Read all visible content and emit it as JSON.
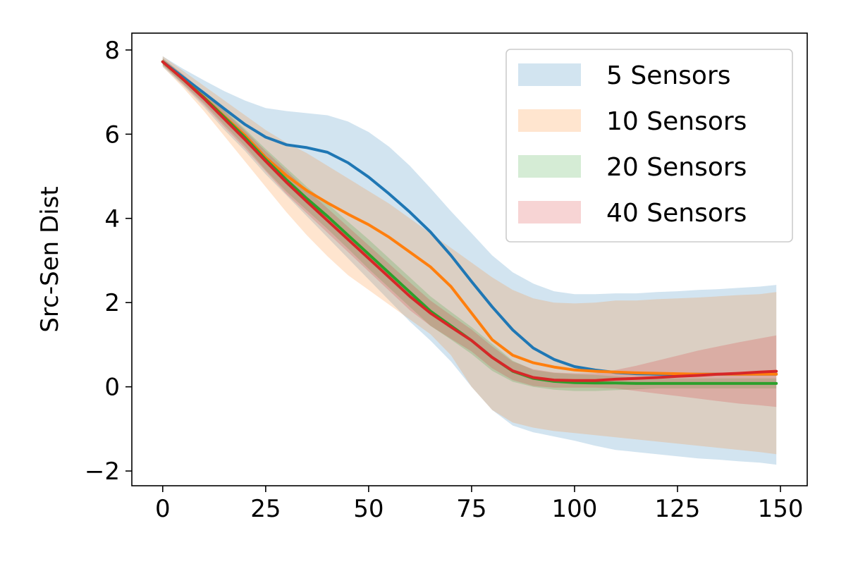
{
  "chart_data": {
    "type": "line",
    "title": "",
    "xlabel": "",
    "ylabel": "Src-Sen Dist",
    "xlim": [
      -7.5,
      156.5
    ],
    "ylim": [
      -2.35,
      8.4
    ],
    "xticks": [
      0,
      25,
      50,
      75,
      100,
      125,
      150
    ],
    "yticks": [
      -2,
      0,
      2,
      4,
      6,
      8
    ],
    "xtick_labels": [
      "0",
      "25",
      "50",
      "75",
      "100",
      "125",
      "150"
    ],
    "ytick_labels": [
      "−2",
      "0",
      "2",
      "4",
      "6",
      "8"
    ],
    "grid": false,
    "legend_position": "upper right",
    "shaded_band": "mean ± spread",
    "band_opacity": 0.2,
    "x": [
      0,
      5,
      10,
      15,
      20,
      25,
      30,
      35,
      40,
      45,
      50,
      55,
      60,
      65,
      70,
      75,
      80,
      85,
      90,
      95,
      100,
      105,
      110,
      115,
      120,
      125,
      130,
      135,
      140,
      145,
      149
    ],
    "series": [
      {
        "name": "5 Sensors",
        "color": "#1f77b4",
        "mean": [
          7.72,
          7.35,
          6.98,
          6.6,
          6.23,
          5.93,
          5.75,
          5.68,
          5.57,
          5.32,
          4.98,
          4.58,
          4.15,
          3.68,
          3.12,
          2.5,
          1.9,
          1.35,
          0.92,
          0.65,
          0.48,
          0.4,
          0.34,
          0.31,
          0.3,
          0.3,
          0.3,
          0.3,
          0.3,
          0.3,
          0.3
        ],
        "upper": [
          7.85,
          7.55,
          7.28,
          7.02,
          6.8,
          6.62,
          6.55,
          6.5,
          6.45,
          6.3,
          6.05,
          5.7,
          5.25,
          4.72,
          4.17,
          3.65,
          3.12,
          2.72,
          2.45,
          2.27,
          2.2,
          2.2,
          2.22,
          2.22,
          2.25,
          2.27,
          2.3,
          2.32,
          2.35,
          2.38,
          2.42
        ],
        "lower": [
          7.6,
          7.15,
          6.65,
          6.1,
          5.6,
          5.05,
          4.55,
          4.05,
          3.55,
          3.05,
          2.55,
          2.05,
          1.55,
          1.1,
          0.6,
          0.0,
          -0.55,
          -0.92,
          -1.08,
          -1.18,
          -1.28,
          -1.4,
          -1.5,
          -1.55,
          -1.6,
          -1.65,
          -1.7,
          -1.73,
          -1.77,
          -1.8,
          -1.85
        ]
      },
      {
        "name": "10 Sensors",
        "color": "#ff7f0e",
        "mean": [
          7.72,
          7.3,
          6.88,
          6.42,
          5.97,
          5.45,
          5.02,
          4.66,
          4.37,
          4.1,
          3.85,
          3.55,
          3.2,
          2.85,
          2.38,
          1.75,
          1.12,
          0.75,
          0.57,
          0.47,
          0.4,
          0.37,
          0.35,
          0.33,
          0.32,
          0.31,
          0.3,
          0.3,
          0.3,
          0.3,
          0.3
        ],
        "upper": [
          7.85,
          7.5,
          7.15,
          6.8,
          6.45,
          6.1,
          5.8,
          5.55,
          5.25,
          4.95,
          4.65,
          4.35,
          4.0,
          3.65,
          3.3,
          2.95,
          2.6,
          2.3,
          2.1,
          2.0,
          1.98,
          2.0,
          2.05,
          2.05,
          2.08,
          2.1,
          2.12,
          2.15,
          2.18,
          2.2,
          2.25
        ],
        "lower": [
          7.6,
          7.1,
          6.55,
          5.95,
          5.35,
          4.75,
          4.15,
          3.6,
          3.1,
          2.65,
          2.3,
          1.95,
          1.6,
          1.25,
          0.75,
          0.0,
          -0.55,
          -0.85,
          -0.97,
          -1.05,
          -1.1,
          -1.15,
          -1.2,
          -1.25,
          -1.3,
          -1.35,
          -1.4,
          -1.45,
          -1.5,
          -1.55,
          -1.6
        ]
      },
      {
        "name": "20 Sensors",
        "color": "#2ca02c",
        "mean": [
          7.72,
          7.3,
          6.87,
          6.4,
          5.92,
          5.4,
          4.92,
          4.47,
          4.05,
          3.6,
          3.15,
          2.7,
          2.25,
          1.8,
          1.45,
          1.1,
          0.7,
          0.37,
          0.2,
          0.13,
          0.1,
          0.09,
          0.09,
          0.08,
          0.08,
          0.08,
          0.08,
          0.08,
          0.08,
          0.08,
          0.08
        ],
        "upper": [
          7.8,
          7.4,
          7.0,
          6.58,
          6.12,
          5.65,
          5.2,
          4.75,
          4.35,
          3.92,
          3.5,
          3.05,
          2.6,
          2.15,
          1.78,
          1.42,
          1.02,
          0.62,
          0.4,
          0.33,
          0.3,
          0.28,
          0.25,
          0.22,
          0.2,
          0.2,
          0.2,
          0.2,
          0.2,
          0.2,
          0.2
        ],
        "lower": [
          7.64,
          7.2,
          6.74,
          6.22,
          5.72,
          5.15,
          4.64,
          4.19,
          3.75,
          3.28,
          2.8,
          2.35,
          1.9,
          1.45,
          1.12,
          0.78,
          0.38,
          0.12,
          0.0,
          -0.07,
          -0.1,
          -0.1,
          -0.08,
          -0.06,
          -0.04,
          -0.04,
          -0.04,
          -0.04,
          -0.04,
          -0.04,
          -0.04
        ]
      },
      {
        "name": "40 Sensors",
        "color": "#d62728",
        "mean": [
          7.72,
          7.3,
          6.85,
          6.36,
          5.87,
          5.36,
          4.86,
          4.4,
          3.95,
          3.5,
          3.05,
          2.6,
          2.15,
          1.75,
          1.42,
          1.1,
          0.7,
          0.38,
          0.22,
          0.16,
          0.15,
          0.15,
          0.18,
          0.2,
          0.22,
          0.25,
          0.27,
          0.3,
          0.32,
          0.35,
          0.37
        ],
        "upper": [
          7.8,
          7.42,
          7.0,
          6.55,
          6.08,
          5.6,
          5.14,
          4.68,
          4.24,
          3.8,
          3.36,
          2.92,
          2.48,
          2.05,
          1.7,
          1.36,
          0.96,
          0.6,
          0.42,
          0.34,
          0.32,
          0.32,
          0.4,
          0.5,
          0.62,
          0.74,
          0.86,
          0.96,
          1.06,
          1.15,
          1.22
        ],
        "lower": [
          7.64,
          7.18,
          6.7,
          6.17,
          5.66,
          5.12,
          4.58,
          4.12,
          3.66,
          3.2,
          2.74,
          2.28,
          1.82,
          1.45,
          1.14,
          0.84,
          0.44,
          0.16,
          0.02,
          -0.02,
          -0.02,
          -0.02,
          -0.04,
          -0.1,
          -0.16,
          -0.22,
          -0.28,
          -0.34,
          -0.4,
          -0.44,
          -0.48
        ]
      }
    ]
  }
}
